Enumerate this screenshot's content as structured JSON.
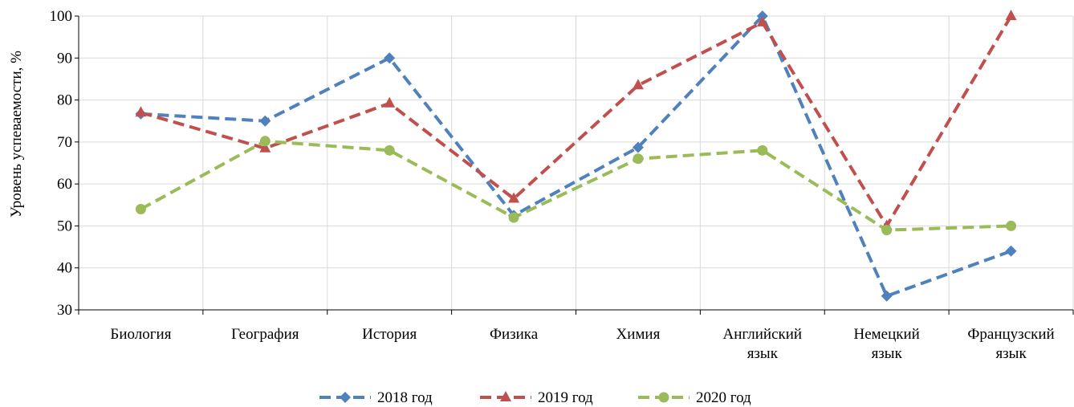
{
  "chart_data": {
    "type": "line",
    "title": "",
    "xlabel": "",
    "ylabel": "Уровень успеваемости, %",
    "ylim": [
      30,
      100
    ],
    "yticks": [
      30,
      40,
      50,
      60,
      70,
      80,
      90,
      100
    ],
    "grid": true,
    "legend_position": "bottom",
    "categories": [
      [
        "Биология"
      ],
      [
        "География"
      ],
      [
        "История"
      ],
      [
        "Физика"
      ],
      [
        "Химия"
      ],
      [
        "Английский",
        "язык"
      ],
      [
        "Немецкий",
        "язык"
      ],
      [
        "Французский",
        "язык"
      ]
    ],
    "series": [
      {
        "name": "2018 год",
        "color": "#4f81bd",
        "marker": "diamond",
        "values": [
          76.7,
          75,
          90,
          52.5,
          68.7,
          100,
          33.3,
          44
        ]
      },
      {
        "name": "2019 год",
        "color": "#c0504d",
        "marker": "triangle",
        "values": [
          77,
          68.5,
          79.2,
          56.5,
          83.5,
          98.5,
          50,
          100
        ]
      },
      {
        "name": "2020 год",
        "color": "#9bbb59",
        "marker": "circle",
        "values": [
          54,
          70.2,
          68,
          52,
          66,
          68,
          49,
          50
        ]
      }
    ]
  }
}
